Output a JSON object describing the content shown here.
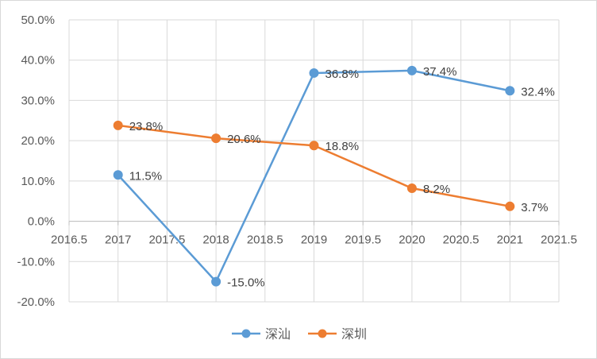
{
  "chart_data": {
    "type": "scatter",
    "title": "",
    "xlabel": "",
    "ylabel": "",
    "xlim": [
      2016.5,
      2021.5
    ],
    "ylim": [
      -0.2,
      0.5
    ],
    "x_ticks": [
      "2016.5",
      "2017",
      "2017.5",
      "2018",
      "2018.5",
      "2019",
      "2019.5",
      "2020",
      "2020.5",
      "2021",
      "2021.5"
    ],
    "y_ticks": [
      "50.0%",
      "40.0%",
      "30.0%",
      "20.0%",
      "10.0%",
      "0.0%",
      "-10.0%",
      "-20.0%"
    ],
    "grid": true,
    "legend_position": "bottom",
    "series": [
      {
        "name": "深汕",
        "color": "#5b9bd5",
        "x": [
          2017,
          2018,
          2019,
          2020,
          2021
        ],
        "y": [
          0.115,
          -0.15,
          0.368,
          0.374,
          0.324
        ],
        "labels": [
          "11.5%",
          "-15.0%",
          "36.8%",
          "37.4%",
          "32.4%"
        ]
      },
      {
        "name": "深圳",
        "color": "#ed7d31",
        "x": [
          2017,
          2018,
          2019,
          2020,
          2021
        ],
        "y": [
          0.238,
          0.206,
          0.188,
          0.082,
          0.037
        ],
        "labels": [
          "23.8%",
          "20.6%",
          "18.8%",
          "8.2%",
          "3.7%"
        ]
      }
    ]
  }
}
